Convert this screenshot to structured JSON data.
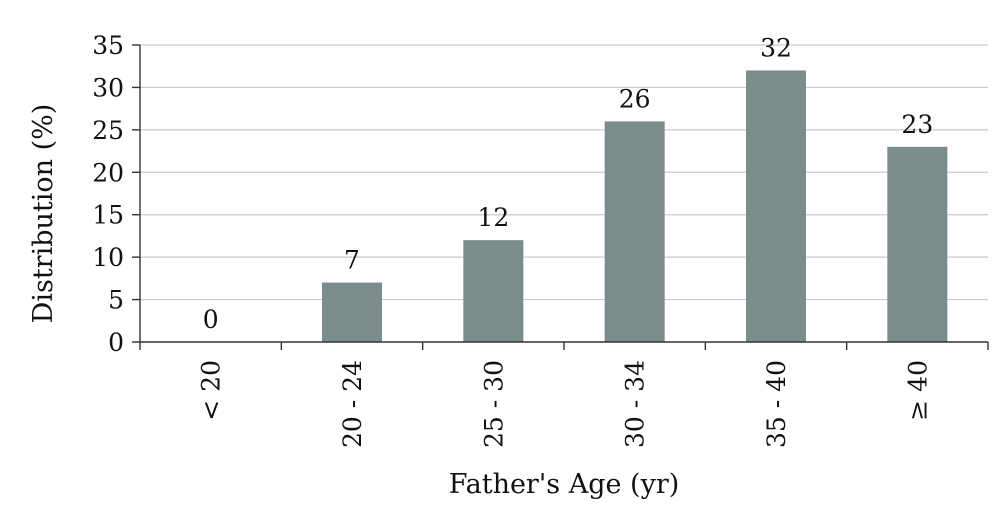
{
  "chart_data": {
    "type": "bar",
    "categories": [
      "< 20",
      "20 - 24",
      "25 - 30",
      "30 - 34",
      "35 - 40",
      "≥ 40"
    ],
    "values": [
      0,
      7,
      12,
      26,
      32,
      23
    ],
    "data_labels": [
      "0",
      "7",
      "12",
      "26",
      "32",
      "23"
    ],
    "title": "",
    "xlabel": "Father's Age (yr)",
    "ylabel": "Distribution (%)",
    "ylim": [
      0,
      35
    ],
    "yticks": [
      0,
      5,
      10,
      15,
      20,
      25,
      30,
      35
    ],
    "ytick_labels": [
      "0",
      "5",
      "10",
      "15",
      "20",
      "25",
      "30",
      "35"
    ],
    "grid": true,
    "legend": "none",
    "bar_color": "#7a8c8c"
  }
}
